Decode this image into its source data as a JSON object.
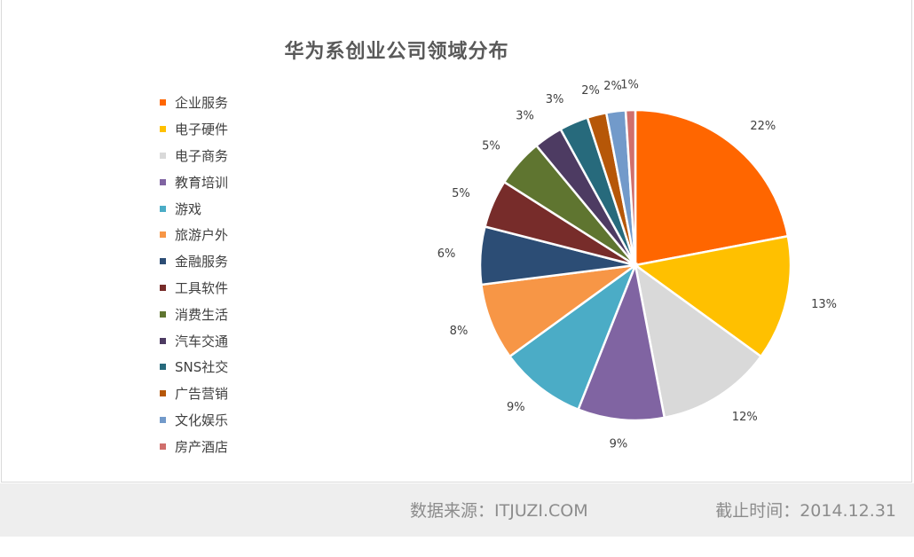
{
  "chart_data": {
    "type": "pie",
    "title": "华为系创业公司领域分布",
    "legend_position": "left",
    "slices": [
      {
        "label": "企业服务",
        "value": 22,
        "display": "22%",
        "color": "#FF6600"
      },
      {
        "label": "电子硬件",
        "value": 13,
        "display": "13%",
        "color": "#FFC000"
      },
      {
        "label": "电子商务",
        "value": 12,
        "display": "12%",
        "color": "#D9D9D9"
      },
      {
        "label": "教育培训",
        "value": 9,
        "display": "9%",
        "color": "#8064A2"
      },
      {
        "label": "游戏",
        "value": 9,
        "display": "9%",
        "color": "#4BACC6"
      },
      {
        "label": "旅游户外",
        "value": 8,
        "display": "8%",
        "color": "#F79646"
      },
      {
        "label": "金融服务",
        "value": 6,
        "display": "6%",
        "color": "#2C4D75"
      },
      {
        "label": "工具软件",
        "value": 5,
        "display": "5%",
        "color": "#772C2A"
      },
      {
        "label": "消费生活",
        "value": 5,
        "display": "5%",
        "color": "#5F7530"
      },
      {
        "label": "汽车交通",
        "value": 3,
        "display": "3%",
        "color": "#4D3B62"
      },
      {
        "label": "SNS社交",
        "value": 3,
        "display": "3%",
        "color": "#276A7C"
      },
      {
        "label": "广告营销",
        "value": 2,
        "display": "2%",
        "color": "#B65708"
      },
      {
        "label": "文化娱乐",
        "value": 2,
        "display": "2%",
        "color": "#729ACA"
      },
      {
        "label": "房产酒店",
        "value": 1,
        "display": "1%",
        "color": "#D06F6C"
      }
    ]
  },
  "footer": {
    "source": "数据来源：ITJUZI.COM",
    "date": "截止时间：2014.12.31"
  }
}
